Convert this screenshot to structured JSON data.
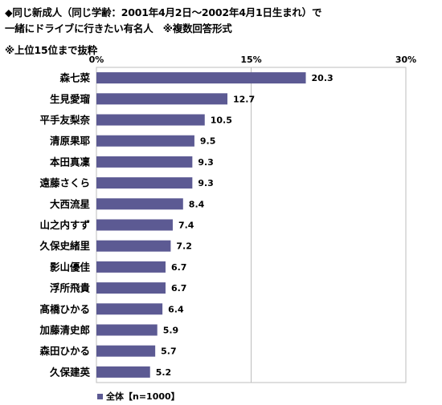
{
  "heading": {
    "line1": "◆同じ新成人（同じ学齢：2001年4月2日～2002年4月1日生まれ）で",
    "line2": "一緒にドライブに行きたい有名人　※複数回答形式",
    "line3": "※上位15位まで抜粋"
  },
  "chart_data": {
    "type": "bar",
    "orientation": "horizontal",
    "xlim": [
      0,
      30
    ],
    "tick_values": [
      0,
      15,
      30
    ],
    "tick_labels": [
      "0%",
      "15%",
      "30%"
    ],
    "grid": true,
    "bar_color": "#5c5a93",
    "categories": [
      "森七菜",
      "生見愛瑠",
      "平手友梨奈",
      "清原果耶",
      "本田真凜",
      "遠藤さくら",
      "大西流星",
      "山之内すず",
      "久保史緒里",
      "影山優佳",
      "浮所飛貴",
      "髙橋ひかる",
      "加藤清史郎",
      "森田ひかる",
      "久保建英"
    ],
    "series": [
      {
        "name": "全体【n=1000】",
        "values": [
          20.3,
          12.7,
          10.5,
          9.5,
          9.3,
          9.3,
          8.4,
          7.4,
          7.2,
          6.7,
          6.7,
          6.4,
          5.9,
          5.7,
          5.2
        ],
        "value_labels": [
          "20.3",
          "12.7",
          "10.5",
          "9.5",
          "9.3",
          "9.3",
          "8.4",
          "7.4",
          "7.2",
          "6.7",
          "6.7",
          "6.4",
          "5.9",
          "5.7",
          "5.2"
        ]
      }
    ],
    "legend_position": "bottom-left"
  }
}
